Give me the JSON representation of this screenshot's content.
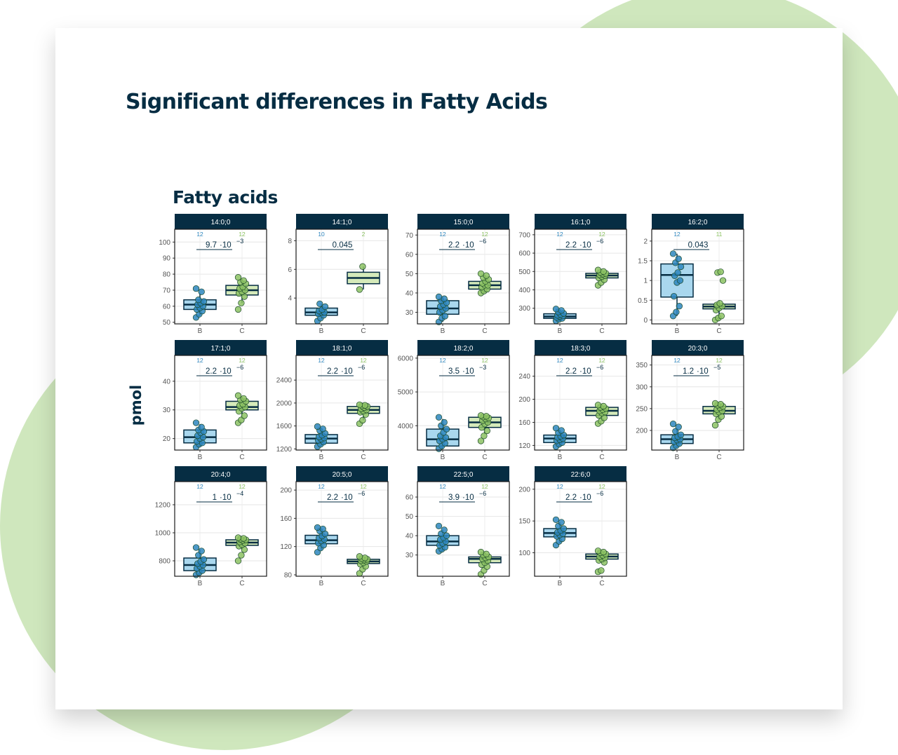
{
  "slide": {
    "title": "Significant differences in Fatty Acids"
  },
  "chart_data": {
    "type": "box",
    "title": "Fatty acids",
    "ylabel": "pmol",
    "groups": [
      "B",
      "C"
    ],
    "colors": {
      "B_fill": "#a9d7ee",
      "B_point": "#2d86be",
      "C_fill": "#d5eaba",
      "C_point": "#8cc263",
      "strip": "#062d43",
      "text": "#062d43"
    },
    "panels": [
      {
        "label": "14:0;0",
        "n": [
          12,
          12
        ],
        "p": "9.7",
        "pexp": "−3",
        "ylim": [
          49,
          108
        ],
        "yticks": [
          50,
          60,
          70,
          80,
          90,
          100
        ],
        "boxes": [
          {
            "q1": 58,
            "median": 61,
            "q3": 64,
            "whisker_low": 54,
            "whisker_high": 68,
            "points": [
              53,
              55,
              57,
              58,
              59,
              60,
              61,
              62,
              63,
              64,
              69,
              71
            ]
          },
          {
            "q1": 67,
            "median": 70,
            "q3": 73,
            "whisker_low": 62,
            "whisker_high": 77,
            "points": [
              58,
              62,
              66,
              68,
              69,
              70,
              71,
              72,
              74,
              75,
              76,
              78
            ]
          }
        ]
      },
      {
        "label": "14:1;0",
        "n": [
          10,
          2
        ],
        "p": "0.045",
        "pexp": "",
        "ylim": [
          2.2,
          8.8
        ],
        "yticks": [
          4,
          6,
          8
        ],
        "boxes": [
          {
            "q1": 2.8,
            "median": 3.0,
            "q3": 3.3,
            "whisker_low": 2.5,
            "whisker_high": 3.6,
            "points": [
              2.4,
              2.6,
              2.8,
              2.9,
              3.0,
              3.0,
              3.1,
              3.2,
              3.4,
              3.6
            ]
          },
          {
            "q1": 5.0,
            "median": 5.4,
            "q3": 5.8,
            "whisker_low": 4.6,
            "whisker_high": 6.2,
            "points": [
              4.6,
              6.2
            ]
          }
        ]
      },
      {
        "label": "15:0;0",
        "n": [
          12,
          12
        ],
        "p": "2.2",
        "pexp": "−6",
        "ylim": [
          24,
          73
        ],
        "yticks": [
          30,
          40,
          50,
          60,
          70
        ],
        "boxes": [
          {
            "q1": 29,
            "median": 32,
            "q3": 36,
            "whisker_low": 25,
            "whisker_high": 38,
            "points": [
              25,
              27,
              28,
              30,
              31,
              32,
              33,
              34,
              35,
              36,
              37,
              38
            ]
          },
          {
            "q1": 42,
            "median": 44,
            "q3": 46,
            "whisker_low": 40,
            "whisker_high": 49,
            "points": [
              40,
              41,
              42,
              43,
              44,
              44,
              45,
              46,
              47,
              48,
              49,
              50
            ]
          }
        ]
      },
      {
        "label": "16:1;0",
        "n": [
          12,
          12
        ],
        "p": "2.2",
        "pexp": "−6",
        "ylim": [
          215,
          730
        ],
        "yticks": [
          300,
          400,
          500,
          600,
          700
        ],
        "boxes": [
          {
            "q1": 245,
            "median": 255,
            "q3": 270,
            "whisker_low": 230,
            "whisker_high": 290,
            "points": [
              232,
              240,
              245,
              250,
              255,
              258,
              262,
              266,
              272,
              280,
              288,
              296
            ]
          },
          {
            "q1": 465,
            "median": 478,
            "q3": 490,
            "whisker_low": 445,
            "whisker_high": 505,
            "points": [
              425,
              440,
              455,
              465,
              472,
              478,
              482,
              486,
              490,
              495,
              500,
              508
            ]
          }
        ]
      },
      {
        "label": "16:2;0",
        "n": [
          12,
          11
        ],
        "p": "0.043",
        "pexp": "",
        "ylim": [
          -0.1,
          2.3
        ],
        "yticks": [
          0.0,
          0.5,
          1.0,
          1.5,
          2.0
        ],
        "boxes": [
          {
            "q1": 0.58,
            "median": 1.14,
            "q3": 1.42,
            "whisker_low": 0.1,
            "whisker_high": 1.68,
            "points": [
              0.1,
              0.2,
              0.35,
              0.6,
              0.95,
              1.0,
              1.12,
              1.2,
              1.35,
              1.45,
              1.55,
              1.68
            ]
          },
          {
            "q1": 0.28,
            "median": 0.34,
            "q3": 0.4,
            "whisker_low": 0.0,
            "whisker_high": 0.5,
            "points": [
              0.0,
              0.05,
              0.1,
              0.25,
              0.3,
              0.35,
              0.38,
              0.42,
              1.0,
              1.2,
              1.22
            ]
          }
        ]
      },
      {
        "label": "17:1;0",
        "n": [
          12,
          12
        ],
        "p": "2.2",
        "pexp": "−6",
        "ylim": [
          16,
          49
        ],
        "yticks": [
          20,
          30,
          40
        ],
        "boxes": [
          {
            "q1": 18.5,
            "median": 20.5,
            "q3": 23,
            "whisker_low": 17,
            "whisker_high": 25,
            "points": [
              17,
              18,
              18.5,
              19,
              20,
              20.5,
              21,
              22,
              22.5,
              23,
              24,
              25.5
            ]
          },
          {
            "q1": 30,
            "median": 31,
            "q3": 33,
            "whisker_low": 27,
            "whisker_high": 34.5,
            "points": [
              25.5,
              26.5,
              28,
              29.5,
              30.5,
              31,
              31.5,
              32,
              33,
              33.5,
              34,
              35
            ]
          }
        ]
      },
      {
        "label": "18:1;0",
        "n": [
          12,
          12
        ],
        "p": "2.2",
        "pexp": "−6",
        "ylim": [
          1180,
          2830
        ],
        "yticks": [
          1200,
          1600,
          2000,
          2400
        ],
        "boxes": [
          {
            "q1": 1300,
            "median": 1380,
            "q3": 1450,
            "whisker_low": 1250,
            "whisker_high": 1560,
            "points": [
              1240,
              1280,
              1320,
              1350,
              1370,
              1390,
              1410,
              1440,
              1470,
              1520,
              1550,
              1590
            ]
          },
          {
            "q1": 1820,
            "median": 1880,
            "q3": 1940,
            "whisker_low": 1700,
            "whisker_high": 1960,
            "points": [
              1640,
              1700,
              1800,
              1840,
              1860,
              1880,
              1900,
              1920,
              1940,
              1950,
              1960,
              1970
            ]
          }
        ]
      },
      {
        "label": "18:2;0",
        "n": [
          12,
          12
        ],
        "p": "3.5",
        "pexp": "−3",
        "ylim": [
          3280,
          6080
        ],
        "yticks": [
          4000,
          5000,
          6000
        ],
        "boxes": [
          {
            "q1": 3400,
            "median": 3600,
            "q3": 3900,
            "whisker_low": 3300,
            "whisker_high": 4200,
            "points": [
              3320,
              3400,
              3480,
              3550,
              3600,
              3650,
              3700,
              3800,
              3900,
              4000,
              4100,
              4250
            ]
          },
          {
            "q1": 3950,
            "median": 4100,
            "q3": 4250,
            "whisker_low": 3750,
            "whisker_high": 4280,
            "points": [
              3550,
              3700,
              3850,
              3950,
              4050,
              4100,
              4150,
              4200,
              4230,
              4260,
              4280,
              4300
            ]
          }
        ]
      },
      {
        "label": "18:3;0",
        "n": [
          12,
          12
        ],
        "p": "2.2",
        "pexp": "−6",
        "ylim": [
          112,
          276
        ],
        "yticks": [
          120,
          160,
          200,
          240
        ],
        "boxes": [
          {
            "q1": 125,
            "median": 132,
            "q3": 138,
            "whisker_low": 118,
            "whisker_high": 146,
            "points": [
              118,
              122,
              125,
              128,
              130,
              132,
              134,
              136,
              138,
              142,
              146,
              150
            ]
          },
          {
            "q1": 172,
            "median": 180,
            "q3": 186,
            "whisker_low": 162,
            "whisker_high": 188,
            "points": [
              158,
              162,
              168,
              172,
              176,
              178,
              180,
              182,
              184,
              186,
              188,
              190
            ]
          }
        ]
      },
      {
        "label": "20:3;0",
        "n": [
          12,
          12
        ],
        "p": "1.2",
        "pexp": "−5",
        "ylim": [
          155,
          372
        ],
        "yticks": [
          200,
          250,
          300,
          350
        ],
        "boxes": [
          {
            "q1": 170,
            "median": 180,
            "q3": 190,
            "whisker_low": 160,
            "whisker_high": 205,
            "points": [
              160,
              165,
              170,
              174,
              178,
              180,
              183,
              186,
              190,
              198,
              208,
              215
            ]
          },
          {
            "q1": 238,
            "median": 245,
            "q3": 255,
            "whisker_low": 225,
            "whisker_high": 262,
            "points": [
              212,
              225,
              232,
              238,
              242,
              245,
              248,
              252,
              255,
              258,
              260,
              262
            ]
          }
        ]
      },
      {
        "label": "20:4;0",
        "n": [
          12,
          12
        ],
        "p": "1",
        "pexp": "−4",
        "ylim": [
          690,
          1365
        ],
        "yticks": [
          800,
          1000,
          1200
        ],
        "boxes": [
          {
            "q1": 730,
            "median": 770,
            "q3": 820,
            "whisker_low": 700,
            "whisker_high": 880,
            "points": [
              700,
              715,
              730,
              745,
              760,
              770,
              780,
              795,
              810,
              840,
              870,
              895
            ]
          },
          {
            "q1": 910,
            "median": 930,
            "q3": 950,
            "whisker_low": 880,
            "whisker_high": 960,
            "points": [
              800,
              840,
              880,
              905,
              915,
              925,
              935,
              945,
              950,
              955,
              960,
              965
            ]
          }
        ]
      },
      {
        "label": "20:5;0",
        "n": [
          12,
          12
        ],
        "p": "2.2",
        "pexp": "−6",
        "ylim": [
          78,
          212
        ],
        "yticks": [
          80,
          120,
          160,
          200
        ],
        "boxes": [
          {
            "q1": 124,
            "median": 129,
            "q3": 136,
            "whisker_low": 115,
            "whisker_high": 145,
            "points": [
              112,
              118,
              122,
              125,
              128,
              130,
              132,
              135,
              138,
              142,
              145,
              147
            ]
          },
          {
            "q1": 96,
            "median": 99,
            "q3": 102,
            "whisker_low": 88,
            "whisker_high": 105,
            "points": [
              82,
              88,
              92,
              95,
              97,
              99,
              100,
              101,
              102,
              103,
              104,
              106
            ]
          }
        ]
      },
      {
        "label": "22:5;0",
        "n": [
          12,
          12
        ],
        "p": "3.9",
        "pexp": "−6",
        "ylim": [
          19,
          68
        ],
        "yticks": [
          30,
          40,
          50,
          60
        ],
        "boxes": [
          {
            "q1": 35,
            "median": 37,
            "q3": 40,
            "whisker_low": 32,
            "whisker_high": 43,
            "points": [
              32,
              33,
              34,
              35,
              36,
              37,
              38,
              39,
              40,
              41,
              43,
              45
            ]
          },
          {
            "q1": 26,
            "median": 28,
            "q3": 29,
            "whisker_low": 24,
            "whisker_high": 31,
            "points": [
              20,
              22,
              24,
              25,
              26,
              27,
              28,
              28.5,
              29,
              30,
              30.5,
              31.5
            ]
          }
        ]
      },
      {
        "label": "22:6;0",
        "n": [
          12,
          12
        ],
        "p": "2.2",
        "pexp": "−6",
        "ylim": [
          63,
          212
        ],
        "yticks": [
          100,
          150,
          200
        ],
        "boxes": [
          {
            "q1": 125,
            "median": 131,
            "q3": 138,
            "whisker_low": 115,
            "whisker_high": 148,
            "points": [
              112,
              118,
              122,
              126,
              128,
              130,
              132,
              135,
              138,
              142,
              148,
              152
            ]
          },
          {
            "q1": 90,
            "median": 94,
            "q3": 98,
            "whisker_low": 85,
            "whisker_high": 102,
            "points": [
              70,
              72,
              85,
              88,
              90,
              92,
              94,
              96,
              98,
              100,
              101,
              103
            ]
          }
        ]
      }
    ]
  }
}
